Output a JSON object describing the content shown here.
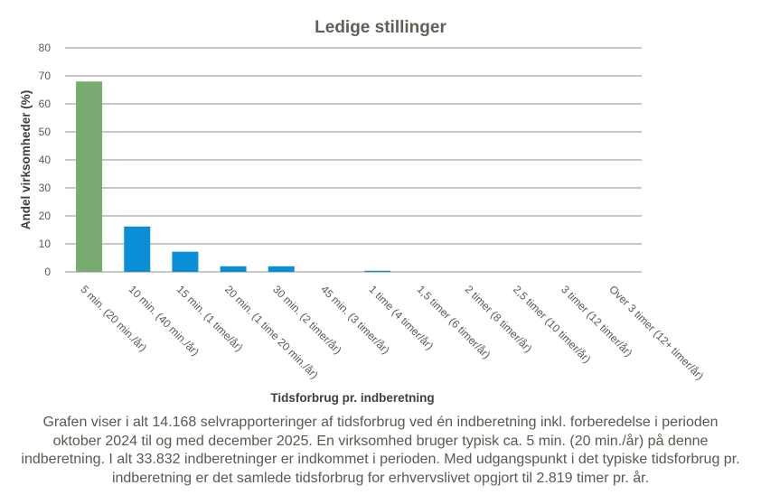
{
  "chart_data": {
    "type": "bar",
    "title": "Ledige stillinger",
    "xlabel": "Tidsforbrug pr. indberetning",
    "ylabel": "Andel virksomheder  (%)",
    "ylim": [
      0,
      80
    ],
    "yticks": [
      0,
      10,
      20,
      30,
      40,
      50,
      60,
      70,
      80
    ],
    "grid": true,
    "categories": [
      "5 min. (20 min./år)",
      "10 min. (40 min./år)",
      "15 min. (1 time/år)",
      "20 min. (1 time 20 min./år)",
      "30 min. (2 timer/år)",
      "45 min. (3 timer/år)",
      "1 time (4 timer/år)",
      "1,5 timer (6 timer/år)",
      "2 timer (8 timer/år)",
      "2,5 timer (10 timer/år)",
      "3 timer (12 timer/år)",
      "Over 3 timer (12+ timer/år)"
    ],
    "values": [
      68.0,
      16.2,
      7.2,
      2.0,
      2.0,
      0,
      0.4,
      0,
      0,
      0,
      0,
      0
    ],
    "highlight_index": 0,
    "colors": {
      "highlight": "#77ab6f",
      "default": "#0a8ed6",
      "grid": "#a6a6a0"
    }
  },
  "caption": "Grafen viser i alt 14.168 selvrapporteringer af tidsforbrug ved én indberetning inkl. forberedelse i perioden oktober 2024 til og med december 2025. En virksomhed bruger typisk ca. 5 min. (20 min./år) på denne indberetning. I alt 33.832 indberetninger er indkommet i perioden. Med udgangspunkt i det typiske tidsforbrug pr. indberetning er det samlede tidsforbrug for erhvervslivet opgjort til 2.819 timer pr. år."
}
